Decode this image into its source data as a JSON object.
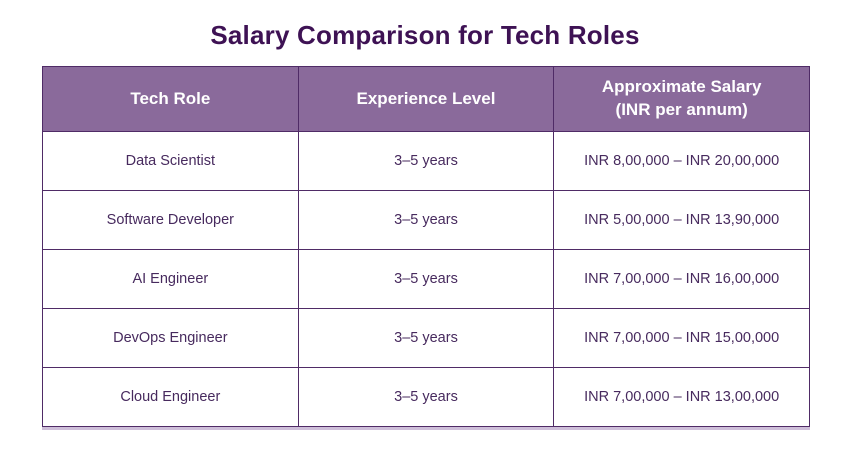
{
  "title": "Salary Comparison for Tech Roles",
  "table": {
    "headers": [
      {
        "line1": "Tech Role",
        "line2": ""
      },
      {
        "line1": "Experience Level",
        "line2": ""
      },
      {
        "line1": "Approximate Salary",
        "line2": "(INR per annum)"
      }
    ],
    "rows": [
      {
        "role": "Data Scientist",
        "experience": "3–5 years",
        "salary": "INR 8,00,000 – INR 20,00,000"
      },
      {
        "role": "Software Developer",
        "experience": "3–5 years",
        "salary": "INR 5,00,000 – INR 13,90,000"
      },
      {
        "role": "AI Engineer",
        "experience": "3–5 years",
        "salary": "INR 7,00,000 – INR 16,00,000"
      },
      {
        "role": "DevOps Engineer",
        "experience": "3–5 years",
        "salary": "INR 7,00,000 – INR 15,00,000"
      },
      {
        "role": "Cloud Engineer",
        "experience": "3–5 years",
        "salary": "INR 7,00,000 – INR 13,00,000"
      }
    ]
  },
  "colors": {
    "title_text": "#3e1254",
    "header_background": "#8a6a9b",
    "header_text": "#ffffff",
    "cell_text": "#472a5e",
    "border": "#4f2b66",
    "page_background": "#ffffff"
  }
}
